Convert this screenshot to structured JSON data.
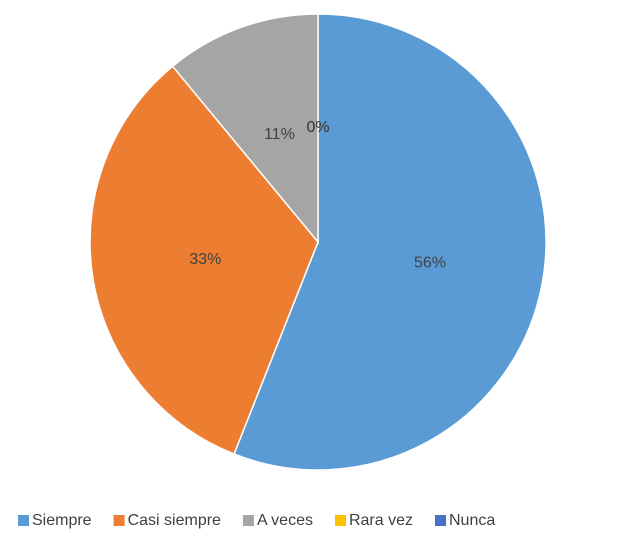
{
  "chart_data": {
    "type": "pie",
    "categories": [
      "Siempre",
      "Casi siempre",
      "A veces",
      "Rara vez",
      "Nunca"
    ],
    "values": [
      56,
      33,
      11,
      0,
      0
    ],
    "value_labels": [
      "56%",
      "33%",
      "11%",
      "0%",
      "0%"
    ],
    "colors": [
      "#5b9bd5",
      "#ed7d31",
      "#a5a5a5",
      "#ffc000",
      "#4472c4"
    ],
    "legend": "bottom"
  }
}
